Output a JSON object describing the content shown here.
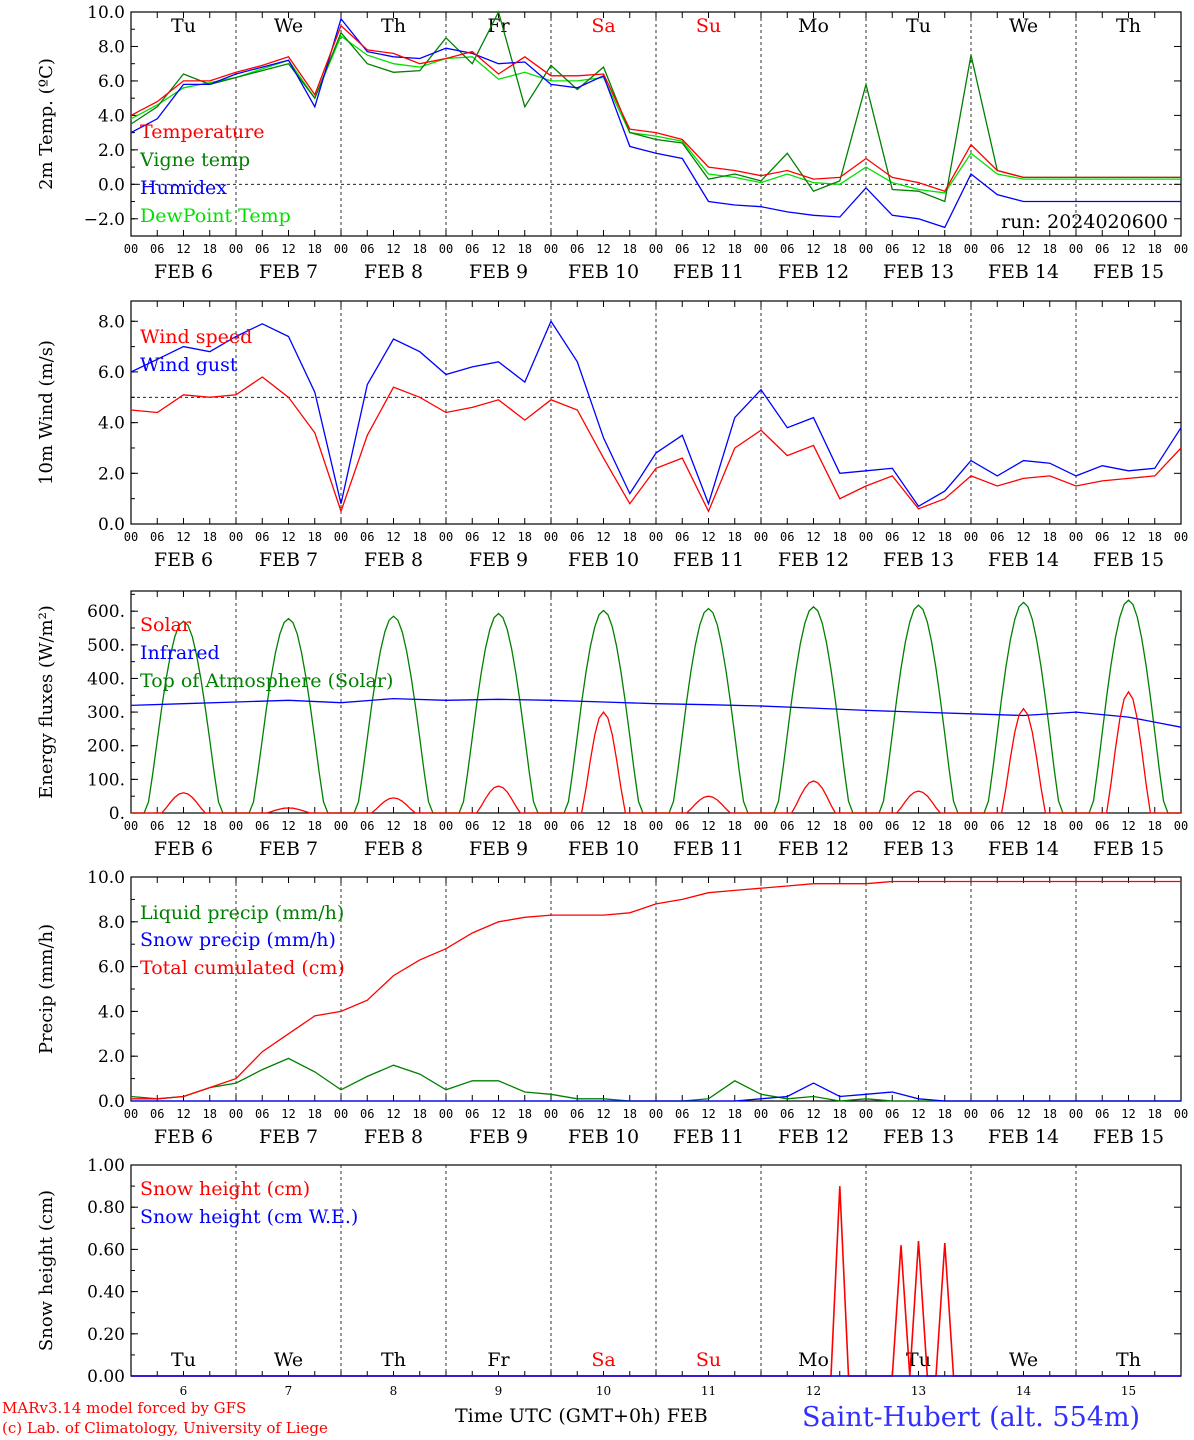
{
  "colors": {
    "red": "#ff0000",
    "green": "#008000",
    "blue": "#0000ff",
    "lightgreen": "#00e000",
    "black": "#000000",
    "violet": "#a000a0"
  },
  "run_label": "run: 2024020600",
  "days": [
    {
      "name": "Tu",
      "date": "6",
      "weekend": false
    },
    {
      "name": "We",
      "date": "7",
      "weekend": false
    },
    {
      "name": "Th",
      "date": "8",
      "weekend": false
    },
    {
      "name": "Fr",
      "date": "9",
      "weekend": false
    },
    {
      "name": "Sa",
      "date": "10",
      "weekend": true
    },
    {
      "name": "Su",
      "date": "11",
      "weekend": true
    },
    {
      "name": "Mo",
      "date": "12",
      "weekend": false
    },
    {
      "name": "Tu",
      "date": "13",
      "weekend": false
    },
    {
      "name": "We",
      "date": "14",
      "weekend": false
    },
    {
      "name": "Th",
      "date": "15",
      "weekend": false
    }
  ],
  "hour_ticks": [
    "00",
    "06",
    "12",
    "18"
  ],
  "month_label": "FEB",
  "footer": {
    "model": "MARv3.14 model forced by GFS",
    "copyright": "(c) Lab. of Climatology, University of Liege",
    "xlabel": "Time UTC (GMT+0h)",
    "month": "FEB",
    "station": "Saint-Hubert (alt. 554m)"
  },
  "chart_data": [
    {
      "type": "line",
      "ylabel": "2m Temp. (ºC)",
      "ylim": [
        -3,
        10
      ],
      "yticks": [
        -2,
        0,
        2,
        4,
        6,
        8,
        10
      ],
      "ytick_labels": [
        "−2.0",
        "0.0",
        "2.0",
        "4.0",
        "6.0",
        "8.0",
        "10.0"
      ],
      "ref_line": 0,
      "show_day_names": true,
      "x_unit": "hours since FEB 6 00 UTC",
      "series": [
        {
          "name": "Temperature",
          "color": "#ff0000",
          "x": [
            0,
            6,
            12,
            18,
            24,
            30,
            36,
            42,
            48,
            54,
            60,
            66,
            72,
            78,
            84,
            90,
            96,
            102,
            108,
            114,
            120,
            126,
            132,
            138,
            144,
            150,
            156,
            162,
            168,
            174,
            180,
            186,
            192,
            198,
            204,
            210,
            216,
            222,
            228,
            234,
            240
          ],
          "values": [
            4.0,
            4.8,
            6.0,
            6.0,
            6.5,
            6.9,
            7.4,
            5.2,
            9.2,
            7.8,
            7.6,
            7.0,
            7.3,
            7.7,
            6.4,
            7.4,
            6.3,
            6.3,
            6.4,
            3.2,
            3.0,
            2.6,
            1.0,
            0.8,
            0.5,
            0.8,
            0.3,
            0.4,
            1.5,
            0.4,
            0.1,
            -0.4,
            2.3,
            0.8,
            0.4,
            0.4,
            0.4,
            0.4,
            0.4,
            0.4,
            0.4
          ]
        },
        {
          "name": "Vigne temp",
          "color": "#008000",
          "x": [
            0,
            6,
            12,
            18,
            24,
            30,
            36,
            42,
            48,
            54,
            60,
            66,
            72,
            78,
            84,
            90,
            96,
            102,
            108,
            114,
            120,
            126,
            132,
            138,
            144,
            150,
            156,
            162,
            168,
            174,
            180,
            186,
            192,
            198,
            204,
            210,
            216,
            222,
            228,
            234,
            240
          ],
          "values": [
            3.5,
            4.5,
            6.4,
            5.8,
            6.2,
            6.6,
            7.0,
            5.0,
            8.8,
            7.0,
            6.5,
            6.6,
            8.5,
            7.0,
            10.0,
            4.5,
            6.9,
            5.5,
            6.8,
            3.0,
            2.6,
            2.4,
            0.3,
            0.6,
            0.2,
            1.8,
            -0.4,
            0.2,
            5.8,
            -0.3,
            -0.4,
            -1.0,
            7.5,
            0.8,
            0.4,
            0.4,
            0.4,
            0.4,
            0.4,
            0.4,
            0.4
          ]
        },
        {
          "name": "Humidex",
          "color": "#0000ff",
          "x": [
            0,
            6,
            12,
            18,
            24,
            30,
            36,
            42,
            48,
            54,
            60,
            66,
            72,
            78,
            84,
            90,
            96,
            102,
            108,
            114,
            120,
            126,
            132,
            138,
            144,
            150,
            156,
            162,
            168,
            174,
            180,
            186,
            192,
            198,
            204,
            210,
            216,
            222,
            228,
            234,
            240
          ],
          "values": [
            3.0,
            3.8,
            5.8,
            5.8,
            6.4,
            6.8,
            7.2,
            4.5,
            9.6,
            7.7,
            7.4,
            7.3,
            7.9,
            7.6,
            7.0,
            7.1,
            5.8,
            5.6,
            6.3,
            2.2,
            1.8,
            1.5,
            -1.0,
            -1.2,
            -1.3,
            -1.6,
            -1.8,
            -1.9,
            -0.2,
            -1.8,
            -2.0,
            -2.5,
            0.6,
            -0.6,
            -1.0,
            -1.0,
            -1.0,
            -1.0,
            -1.0,
            -1.0,
            -1.0
          ]
        },
        {
          "name": "DewPoint Temp",
          "color": "#00e000",
          "x": [
            0,
            6,
            12,
            18,
            24,
            30,
            36,
            42,
            48,
            54,
            60,
            66,
            72,
            78,
            84,
            90,
            96,
            102,
            108,
            114,
            120,
            126,
            132,
            138,
            144,
            150,
            156,
            162,
            168,
            174,
            180,
            186,
            192,
            198,
            204,
            210,
            216,
            222,
            228,
            234,
            240
          ],
          "values": [
            3.8,
            4.6,
            5.6,
            5.9,
            6.2,
            6.7,
            7.2,
            5.0,
            8.6,
            7.5,
            7.0,
            6.8,
            7.3,
            7.4,
            6.1,
            6.5,
            6.0,
            6.0,
            6.2,
            3.0,
            2.8,
            2.5,
            0.6,
            0.4,
            0.1,
            0.6,
            0.1,
            0.0,
            1.0,
            0.1,
            -0.3,
            -0.5,
            1.8,
            0.6,
            0.3,
            0.3,
            0.3,
            0.3,
            0.3,
            0.3,
            0.3
          ]
        }
      ]
    },
    {
      "type": "line",
      "ylabel": "10m Wind (m/s)",
      "ylim": [
        0,
        8.8
      ],
      "yticks": [
        0,
        2,
        4,
        6,
        8
      ],
      "ytick_labels": [
        "0.0",
        "2.0",
        "4.0",
        "6.0",
        "8.0"
      ],
      "ref_line": 5,
      "x_unit": "hours since FEB 6 00 UTC",
      "series": [
        {
          "name": "Wind speed",
          "color": "#ff0000",
          "x": [
            0,
            6,
            12,
            18,
            24,
            30,
            36,
            42,
            48,
            54,
            60,
            66,
            72,
            78,
            84,
            90,
            96,
            102,
            108,
            114,
            120,
            126,
            132,
            138,
            144,
            150,
            156,
            162,
            168,
            174,
            180,
            186,
            192,
            198,
            204,
            210,
            216,
            222,
            228,
            234,
            240
          ],
          "values": [
            4.5,
            4.4,
            5.1,
            5.0,
            5.1,
            5.8,
            5.0,
            3.6,
            0.5,
            3.5,
            5.4,
            5.0,
            4.4,
            4.6,
            4.9,
            4.1,
            4.9,
            4.5,
            2.6,
            0.8,
            2.2,
            2.6,
            0.5,
            3.0,
            3.7,
            2.7,
            3.1,
            1.0,
            1.5,
            1.9,
            0.6,
            1.0,
            1.9,
            1.5,
            1.8,
            1.9,
            1.5,
            1.7,
            1.8,
            1.9,
            3.0
          ]
        },
        {
          "name": "Wind gust",
          "color": "#0000ff",
          "x": [
            0,
            6,
            12,
            18,
            24,
            30,
            36,
            42,
            48,
            54,
            60,
            66,
            72,
            78,
            84,
            90,
            96,
            102,
            108,
            114,
            120,
            126,
            132,
            138,
            144,
            150,
            156,
            162,
            168,
            174,
            180,
            186,
            192,
            198,
            204,
            210,
            216,
            222,
            228,
            234,
            240
          ],
          "values": [
            6.0,
            6.5,
            7.0,
            6.8,
            7.4,
            7.9,
            7.4,
            5.2,
            0.8,
            5.5,
            7.3,
            6.8,
            5.9,
            6.2,
            6.4,
            5.6,
            8.0,
            6.4,
            3.4,
            1.2,
            2.8,
            3.5,
            0.8,
            4.2,
            5.3,
            3.8,
            4.2,
            2.0,
            2.1,
            2.2,
            0.7,
            1.3,
            2.5,
            1.9,
            2.5,
            2.4,
            1.9,
            2.3,
            2.1,
            2.2,
            3.8
          ]
        }
      ]
    },
    {
      "type": "line",
      "ylabel": "Energy fluxes (W/m²)",
      "ylim": [
        0,
        660
      ],
      "yticks": [
        0,
        100,
        200,
        300,
        400,
        500,
        600
      ],
      "ytick_labels": [
        "0.",
        "100.",
        "200.",
        "300.",
        "400.",
        "500.",
        "600."
      ],
      "x_unit": "hours since FEB 6 00 UTC",
      "solar_peaks_by_day": [
        60,
        15,
        45,
        80,
        300,
        50,
        95,
        65,
        310,
        360
      ],
      "toa_peaks_by_day": [
        570,
        578,
        585,
        593,
        602,
        608,
        613,
        618,
        626,
        633
      ],
      "series": [
        {
          "name": "Solar",
          "color": "#ff0000"
        },
        {
          "name": "Infrared",
          "color": "#0000ff",
          "x": [
            0,
            12,
            24,
            36,
            48,
            60,
            72,
            84,
            96,
            108,
            120,
            132,
            144,
            156,
            168,
            180,
            192,
            204,
            216,
            228,
            240
          ],
          "values": [
            320,
            325,
            330,
            335,
            328,
            340,
            335,
            338,
            335,
            330,
            325,
            322,
            318,
            312,
            305,
            300,
            295,
            290,
            300,
            285,
            255
          ]
        },
        {
          "name": "Top of Atmosphere (Solar)",
          "color": "#008000"
        }
      ]
    },
    {
      "type": "line",
      "ylabel": "Precip (mm/h)",
      "ylim": [
        0,
        10
      ],
      "yticks": [
        0,
        2,
        4,
        6,
        8,
        10
      ],
      "ytick_labels": [
        "0.0",
        "2.0",
        "4.0",
        "6.0",
        "8.0",
        "10.0"
      ],
      "x_unit": "hours since FEB 6 00 UTC",
      "series": [
        {
          "name": "Liquid precip (mm/h)",
          "color": "#008000",
          "x": [
            0,
            6,
            12,
            18,
            24,
            30,
            36,
            42,
            48,
            54,
            60,
            66,
            72,
            78,
            84,
            90,
            96,
            102,
            108,
            114,
            120,
            126,
            132,
            138,
            144,
            150,
            156,
            162,
            168,
            174,
            180,
            186,
            192,
            198,
            204,
            210,
            216,
            222,
            228,
            234,
            240
          ],
          "values": [
            0.2,
            0.1,
            0.2,
            0.6,
            0.8,
            1.4,
            1.9,
            1.3,
            0.5,
            1.1,
            1.6,
            1.2,
            0.5,
            0.9,
            0.9,
            0.4,
            0.3,
            0.1,
            0.1,
            0.0,
            0.0,
            0.0,
            0.1,
            0.9,
            0.3,
            0.1,
            0.2,
            0.0,
            0.1,
            0.0,
            0.0,
            0.0,
            0.0,
            0.0,
            0.0,
            0.0,
            0.0,
            0.0,
            0.0,
            0.0,
            0.0
          ]
        },
        {
          "name": "Snow precip (mm/h)",
          "color": "#0000ff",
          "x": [
            0,
            6,
            12,
            18,
            24,
            30,
            36,
            42,
            48,
            54,
            60,
            66,
            72,
            78,
            84,
            90,
            96,
            102,
            108,
            114,
            120,
            126,
            132,
            138,
            144,
            150,
            156,
            162,
            168,
            174,
            180,
            186,
            192,
            198,
            204,
            210,
            216,
            222,
            228,
            234,
            240
          ],
          "values": [
            0,
            0,
            0,
            0,
            0,
            0,
            0,
            0,
            0,
            0,
            0,
            0,
            0,
            0,
            0,
            0,
            0,
            0,
            0,
            0,
            0,
            0,
            0,
            0,
            0.1,
            0.2,
            0.8,
            0.2,
            0.3,
            0.4,
            0.1,
            0,
            0,
            0,
            0,
            0,
            0,
            0,
            0,
            0,
            0
          ]
        },
        {
          "name": "Total cumulated (cm)",
          "color": "#ff0000",
          "x": [
            0,
            6,
            12,
            18,
            24,
            30,
            36,
            42,
            48,
            54,
            60,
            66,
            72,
            78,
            84,
            90,
            96,
            102,
            108,
            114,
            120,
            126,
            132,
            138,
            144,
            150,
            156,
            162,
            168,
            174,
            180,
            186,
            192,
            198,
            204,
            210,
            216,
            222,
            228,
            234,
            240
          ],
          "values": [
            0.1,
            0.1,
            0.2,
            0.6,
            1.0,
            2.2,
            3.0,
            3.8,
            4.0,
            4.5,
            5.6,
            6.3,
            6.8,
            7.5,
            8.0,
            8.2,
            8.3,
            8.3,
            8.3,
            8.4,
            8.8,
            9.0,
            9.3,
            9.4,
            9.5,
            9.6,
            9.7,
            9.7,
            9.7,
            9.8,
            9.8,
            9.8,
            9.8,
            9.8,
            9.8,
            9.8,
            9.8,
            9.8,
            9.8,
            9.8,
            9.8
          ]
        }
      ]
    },
    {
      "type": "line",
      "ylabel": "Snow height (cm)",
      "ylim": [
        0,
        1.0
      ],
      "yticks": [
        0,
        0.2,
        0.4,
        0.6,
        0.8,
        1.0
      ],
      "ytick_labels": [
        "0.00",
        "0.20",
        "0.40",
        "0.60",
        "0.80",
        "1.00"
      ],
      "show_bottom_days": true,
      "x_unit": "hours since FEB 6 00 UTC",
      "series": [
        {
          "name": "Snow height (cm)",
          "color": "#ff0000",
          "x": [
            0,
            150,
            160,
            162,
            164,
            174,
            176,
            178,
            180,
            182,
            184,
            186,
            188,
            240
          ],
          "values": [
            0,
            0,
            0,
            0.9,
            0,
            0,
            0.62,
            0,
            0.64,
            0,
            0,
            0.63,
            0,
            0
          ]
        },
        {
          "name": "Snow height (cm W.E.)",
          "color": "#0000ff",
          "x": [
            0,
            240
          ],
          "values": [
            0,
            0
          ]
        }
      ]
    }
  ]
}
